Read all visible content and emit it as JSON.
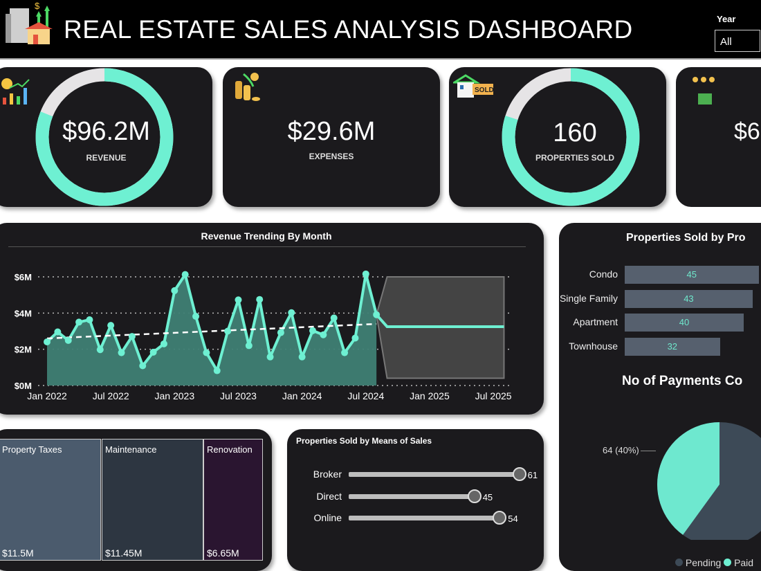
{
  "header": {
    "title": "REAL ESTATE SALES ANALYSIS DASHBOARD",
    "year_label": "Year",
    "year_value": "All"
  },
  "kpis": [
    {
      "value": "$96.2M",
      "label": "REVENUE",
      "icon": "revenue-chart-icon",
      "progress": 0.81
    },
    {
      "value": "$29.6M",
      "label": "EXPENSES",
      "icon": "coins-icon"
    },
    {
      "value": "160",
      "label": "PROPERTIES SOLD",
      "icon": "house-sold-icon",
      "progress": 0.8
    },
    {
      "value": "$6",
      "label": "",
      "icon": "wallet-coins-icon"
    }
  ],
  "colors": {
    "accent": "#6ef0d2",
    "card": "#1b1a1d",
    "ring_bg": "#e6e4e6",
    "pending": "#3d4a57"
  },
  "chart_data": [
    {
      "type": "area",
      "title": "Revenue Trending By Month",
      "x": [
        "Jan 2022",
        "Feb 2022",
        "Mar 2022",
        "Apr 2022",
        "May 2022",
        "Jun 2022",
        "Jul 2022",
        "Aug 2022",
        "Sep 2022",
        "Oct 2022",
        "Nov 2022",
        "Dec 2022",
        "Jan 2023",
        "Feb 2023",
        "Mar 2023",
        "Apr 2023",
        "May 2023",
        "Jun 2023",
        "Jul 2023",
        "Aug 2023",
        "Sep 2023",
        "Oct 2023",
        "Nov 2023",
        "Dec 2023",
        "Jan 2024",
        "Feb 2024",
        "Mar 2024",
        "Apr 2024",
        "May 2024",
        "Jun 2024",
        "Jul 2024",
        "Aug 2024"
      ],
      "values": [
        2.41,
        2.96,
        2.49,
        3.5,
        3.63,
        1.98,
        3.32,
        1.81,
        2.71,
        1.09,
        1.84,
        2.3,
        5.24,
        6.13,
        3.82,
        1.81,
        0.82,
        3.0,
        4.73,
        2.2,
        4.75,
        1.58,
        2.92,
        4.02,
        1.58,
        3.03,
        2.8,
        3.73,
        1.81,
        2.62,
        6.16,
        3.91
      ],
      "trend": [
        2.6,
        3.4
      ],
      "forecast": {
        "from": "Aug 2024",
        "to": "Aug 2025",
        "value": 3.25,
        "upper": 6.0,
        "lower": 0.4
      },
      "unit": "$M",
      "ylim": [
        0,
        6
      ],
      "yticks": [
        "$0M",
        "$2M",
        "$4M",
        "$6M"
      ],
      "xticks": [
        "Jan 2022",
        "Jul 2022",
        "Jan 2023",
        "Jul 2023",
        "Jan 2024",
        "Jul 2024",
        "Jan 2025",
        "Jul 2025"
      ],
      "grid": true
    },
    {
      "type": "bar",
      "title": "Properties Sold by Pro",
      "categories": [
        "Condo",
        "Single Family",
        "Apartment",
        "Townhouse"
      ],
      "values": [
        45,
        43,
        40,
        32
      ]
    },
    {
      "type": "pie",
      "title": "No of Payments Co",
      "slices": [
        {
          "name": "Pending",
          "value": 96
        },
        {
          "name": "Paid",
          "value": 64,
          "label": "64 (40%)"
        }
      ],
      "legend": "bottom"
    },
    {
      "type": "treemap",
      "items": [
        {
          "name": "Property Taxes",
          "value": "$11.5M",
          "color": "#4b5b6d"
        },
        {
          "name": "Maintenance",
          "value": "$11.45M",
          "color": "#2d3641"
        },
        {
          "name": "Renovation",
          "value": "$6.65M",
          "color": "#2a1530"
        }
      ]
    },
    {
      "type": "bar",
      "title": "Properties Sold by Means of Sales",
      "categories": [
        "Broker",
        "Direct",
        "Online"
      ],
      "values": [
        61,
        45,
        54
      ]
    }
  ]
}
